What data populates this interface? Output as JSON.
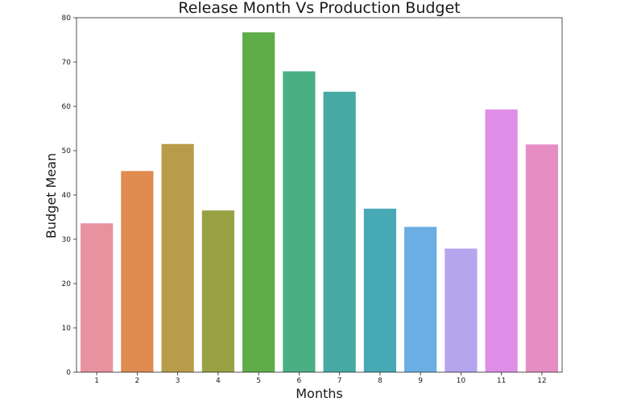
{
  "chart_data": {
    "type": "bar",
    "title": "Release Month Vs Production Budget",
    "xlabel": "Months",
    "ylabel": "Budget Mean",
    "categories": [
      "1",
      "2",
      "3",
      "4",
      "5",
      "6",
      "7",
      "8",
      "9",
      "10",
      "11",
      "12"
    ],
    "values": [
      33.6,
      45.4,
      51.5,
      36.5,
      76.7,
      67.9,
      63.3,
      36.9,
      32.8,
      27.9,
      59.3,
      51.4
    ],
    "colors": [
      "#e8929f",
      "#e08b50",
      "#b89c4a",
      "#98a244",
      "#5ead48",
      "#4ab083",
      "#47aaa4",
      "#47a9b6",
      "#6aaee3",
      "#b5a5ee",
      "#df8ee8",
      "#e68ec4"
    ],
    "ylim": [
      0,
      80
    ],
    "yticks": [
      0,
      10,
      20,
      30,
      40,
      50,
      60,
      70,
      80
    ],
    "grid": false,
    "legend": "none"
  }
}
